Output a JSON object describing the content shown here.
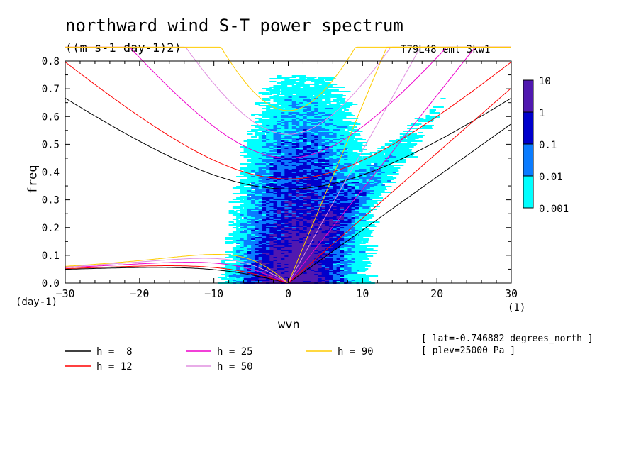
{
  "page": {
    "title": "northward wind S-T power spectrum",
    "units": "((m s-1 day-1)2)",
    "run_name": "T79L48_eml_3kw1",
    "lat_note": "[ lat=-0.746882 degrees_north ]",
    "plev_note": "[ plev=25000 Pa ]",
    "x_unit_left": "(day-1)",
    "x_unit_right": "(1)"
  },
  "chart_data": {
    "type": "heatmap",
    "title": "northward wind S-T power spectrum",
    "xlabel": "wvn",
    "ylabel": "freq",
    "xlim": [
      -30,
      30
    ],
    "ylim": [
      0,
      0.8
    ],
    "xticks": [
      -30,
      -20,
      -10,
      0,
      10,
      20,
      30
    ],
    "xtick_labels": [
      "-30",
      "-20",
      "-10",
      "0",
      "10",
      "20",
      "30"
    ],
    "yticks": [
      0,
      0.1,
      0.2,
      0.3,
      0.4,
      0.5,
      0.6,
      0.7,
      0.8
    ],
    "ytick_labels": [
      "0.0",
      "0.1",
      "0.2",
      "0.3",
      "0.4",
      "0.5",
      "0.6",
      "0.7",
      "0.8"
    ],
    "colorbar": {
      "levels": [
        "0.001",
        "0.01",
        "0.1",
        "1",
        "10"
      ],
      "colors": [
        "#00ffff",
        "#0a7cff",
        "#0000cc",
        "#5018b0"
      ]
    },
    "dispersion_curves": [
      {
        "label": "h =  8",
        "h": 8,
        "color": "#000000"
      },
      {
        "label": "h = 12",
        "h": 12,
        "color": "#ff0000"
      },
      {
        "label": "h = 25",
        "h": 25,
        "color": "#ee00cc"
      },
      {
        "label": "h = 50",
        "h": 50,
        "color": "#e090e0"
      },
      {
        "label": "h = 90",
        "h": 90,
        "color": "#ffcc00"
      }
    ],
    "legend_position": "bottom"
  }
}
